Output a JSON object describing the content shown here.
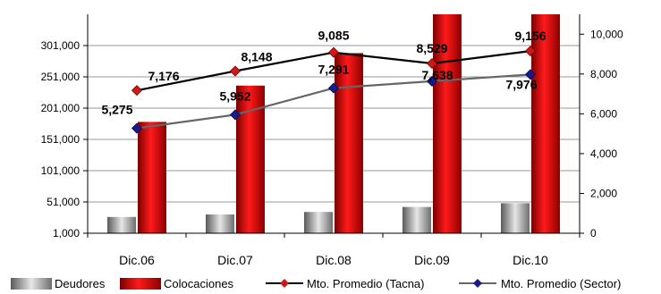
{
  "chart_data": {
    "type": "bar",
    "title": "",
    "categories": [
      "Dic.06",
      "Dic.07",
      "Dic.08",
      "Dic.09",
      "Dic.10"
    ],
    "left_axis": {
      "ylim": [
        1000,
        351000
      ],
      "ticks": [
        1000,
        51000,
        101000,
        151000,
        201000,
        251000,
        301000
      ],
      "tick_labels": [
        "1,000",
        "51,000",
        "101,000",
        "151,000",
        "201,000",
        "251,000",
        "301,000"
      ]
    },
    "right_axis": {
      "ylim": [
        0,
        11000
      ],
      "ticks": [
        0,
        2000,
        4000,
        6000,
        8000,
        10000
      ],
      "tick_labels": [
        "0",
        "2,000",
        "4,000",
        "6,000",
        "8,000",
        "10,000"
      ]
    },
    "grid": true,
    "legend_position": "bottom",
    "series": [
      {
        "name": "Deudores",
        "kind": "bar",
        "axis": "left",
        "color": "#a8a8a8",
        "values": [
          27000,
          31000,
          35000,
          43000,
          49000
        ]
      },
      {
        "name": "Colocaciones",
        "kind": "bar",
        "axis": "left",
        "color": "#cc0000",
        "values": [
          179000,
          237000,
          289000,
          352000,
          352000
        ]
      },
      {
        "name": "Mto. Promedio (Tacna)",
        "kind": "line",
        "axis": "right",
        "color": "#cc1a1a",
        "line_color": "#000000",
        "values": [
          7176,
          8148,
          9085,
          8529,
          9156
        ],
        "labels": [
          "7,176",
          "8,148",
          "9,085",
          "8,529",
          "9,156"
        ]
      },
      {
        "name": "Mto. Promedio (Sector)",
        "kind": "line",
        "axis": "right",
        "color": "#1a1a8c",
        "line_color": "#666666",
        "values": [
          5275,
          5952,
          7291,
          7638,
          7976
        ],
        "labels": [
          "5,275",
          "5,952",
          "7,291",
          "7,638",
          "7,976"
        ]
      }
    ]
  }
}
